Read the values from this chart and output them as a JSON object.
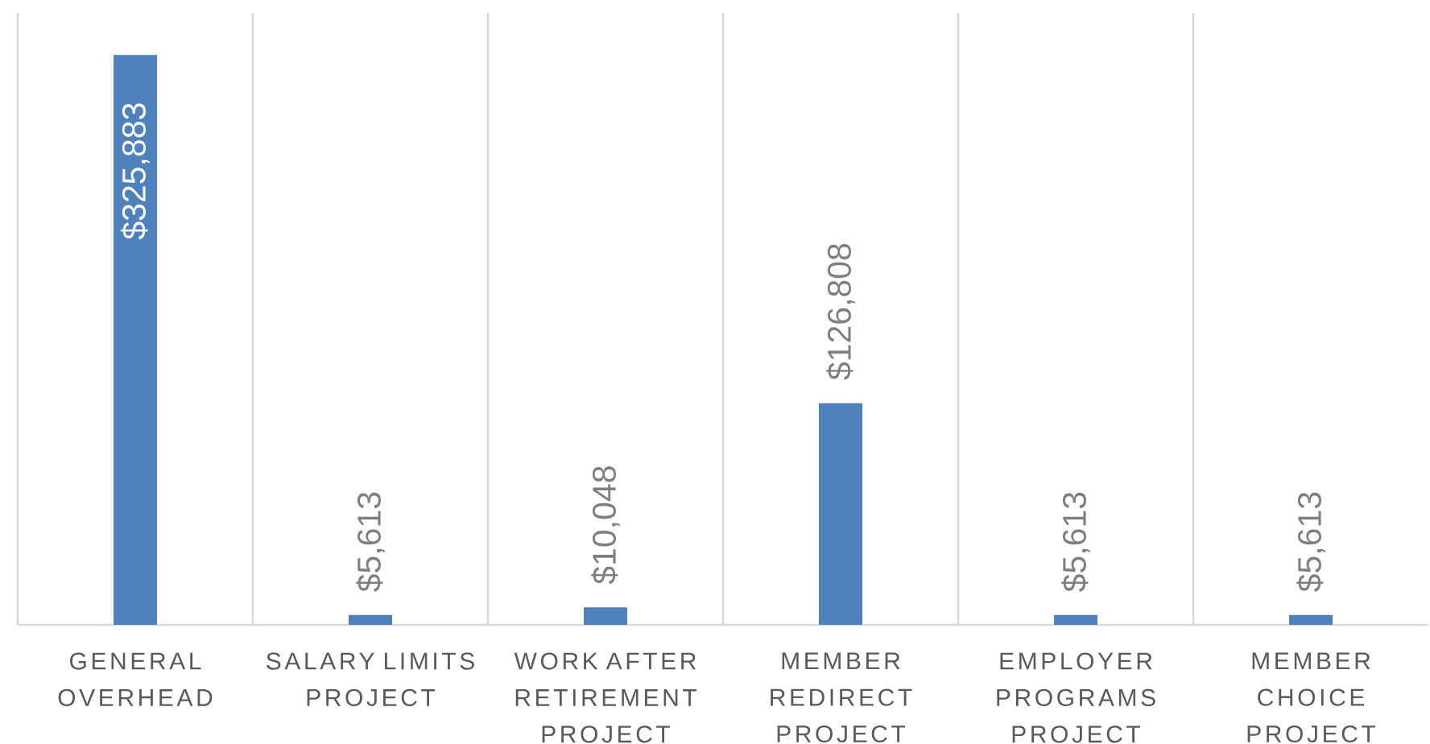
{
  "chart_data": {
    "type": "bar",
    "categories": [
      "GENERAL OVERHEAD",
      "SALARY LIMITS PROJECT",
      "WORK AFTER RETIREMENT PROJECT",
      "MEMBER REDIRECT PROJECT",
      "EMPLOYER PROGRAMS PROJECT",
      "MEMBER CHOICE PROJECT"
    ],
    "values": [
      325883,
      5613,
      10048,
      126808,
      5613,
      5613
    ],
    "value_labels": [
      "$325,883",
      "$5,613",
      "$10,048",
      "$126,808",
      "$5,613",
      "$5,613"
    ],
    "color": "#4f81bd",
    "grid": "x"
  }
}
